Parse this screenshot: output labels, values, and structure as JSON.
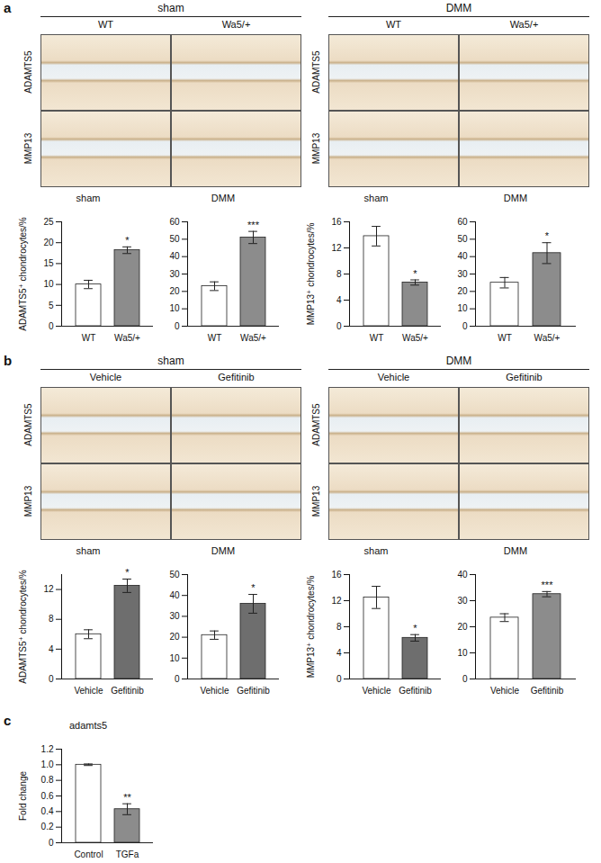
{
  "figure": {
    "panels": [
      {
        "label": "a",
        "rows": [
          "ADAMTS5",
          "MMP13"
        ],
        "groups": [
          {
            "title": "sham",
            "columns": [
              "WT",
              "Wa5/+"
            ]
          },
          {
            "title": "DMM",
            "columns": [
              "WT",
              "Wa5/+"
            ]
          }
        ]
      },
      {
        "label": "b",
        "rows": [
          "ADAMTS5",
          "MMP13"
        ],
        "groups": [
          {
            "title": "sham",
            "columns": [
              "Vehicle",
              "Gefitinib"
            ]
          },
          {
            "title": "DMM",
            "columns": [
              "Vehicle",
              "Gefitinib"
            ]
          }
        ]
      },
      {
        "label": "c"
      }
    ]
  },
  "chart_data": [
    {
      "type": "bar",
      "title": "sham",
      "y_label": "ADAMTS5⁺ chondrocytes/%",
      "categories": [
        "WT",
        "Wa5/+"
      ],
      "values": [
        10,
        18.2
      ],
      "errors": [
        1.0,
        0.8
      ],
      "significance": [
        null,
        "*"
      ],
      "colors": [
        "#ffffff",
        "#8c8c8c"
      ],
      "ylim": [
        0,
        25
      ],
      "yticks": [
        0,
        5,
        10,
        15,
        20,
        25
      ]
    },
    {
      "type": "bar",
      "title": "DMM",
      "categories": [
        "WT",
        "Wa5/+"
      ],
      "values": [
        23,
        51
      ],
      "errors": [
        2.5,
        3.5
      ],
      "significance": [
        null,
        "***"
      ],
      "colors": [
        "#ffffff",
        "#8c8c8c"
      ],
      "ylim": [
        0,
        60
      ],
      "yticks": [
        0,
        10,
        20,
        30,
        40,
        50,
        60
      ]
    },
    {
      "type": "bar",
      "title": "sham",
      "y_label": "MMP13⁺ chondrocytes/%",
      "categories": [
        "WT",
        "Wa5/+"
      ],
      "values": [
        13.8,
        6.7
      ],
      "errors": [
        1.5,
        0.4
      ],
      "significance": [
        null,
        "*"
      ],
      "colors": [
        "#ffffff",
        "#8c8c8c"
      ],
      "ylim": [
        0,
        16
      ],
      "yticks": [
        0,
        4,
        8,
        12,
        16
      ]
    },
    {
      "type": "bar",
      "title": "DMM",
      "categories": [
        "WT",
        "Wa5/+"
      ],
      "values": [
        25,
        42
      ],
      "errors": [
        3,
        6
      ],
      "significance": [
        null,
        "*"
      ],
      "colors": [
        "#ffffff",
        "#8c8c8c"
      ],
      "ylim": [
        0,
        60
      ],
      "yticks": [
        0,
        10,
        20,
        30,
        40,
        50,
        60
      ]
    },
    {
      "type": "bar",
      "title": "sham",
      "y_label": "ADAMTS5⁺ chondrocytes/%",
      "categories": [
        "Vehicle",
        "Gefitinib"
      ],
      "values": [
        6,
        12.5
      ],
      "errors": [
        0.6,
        0.9
      ],
      "significance": [
        null,
        "*"
      ],
      "colors": [
        "#ffffff",
        "#6e6e6e"
      ],
      "ylim": [
        0,
        14
      ],
      "yticks": [
        0,
        4,
        8,
        12
      ]
    },
    {
      "type": "bar",
      "title": "DMM",
      "categories": [
        "Vehicle",
        "Gefitinib"
      ],
      "values": [
        21,
        36
      ],
      "errors": [
        2,
        4.5
      ],
      "significance": [
        null,
        "*"
      ],
      "colors": [
        "#ffffff",
        "#6e6e6e"
      ],
      "ylim": [
        0,
        50
      ],
      "yticks": [
        0,
        10,
        20,
        30,
        40,
        50
      ]
    },
    {
      "type": "bar",
      "title": "sham",
      "y_label": "MMP13⁺ chondrocytes/%",
      "categories": [
        "Vehicle",
        "Gefitinib"
      ],
      "values": [
        12.5,
        6.3
      ],
      "errors": [
        1.7,
        0.5
      ],
      "significance": [
        null,
        "*"
      ],
      "colors": [
        "#ffffff",
        "#6e6e6e"
      ],
      "ylim": [
        0,
        16
      ],
      "yticks": [
        0,
        4,
        8,
        12,
        16
      ]
    },
    {
      "type": "bar",
      "title": "DMM",
      "categories": [
        "Vehicle",
        "Gefitinib"
      ],
      "values": [
        23.5,
        32.5
      ],
      "errors": [
        1.5,
        1
      ],
      "significance": [
        null,
        "***"
      ],
      "colors": [
        "#ffffff",
        "#8c8c8c"
      ],
      "ylim": [
        0,
        40
      ],
      "yticks": [
        0,
        10,
        20,
        30,
        40
      ]
    },
    {
      "type": "bar",
      "title": "adamts5",
      "y_label": "Fold change",
      "categories": [
        "Control",
        "TGFa"
      ],
      "values": [
        1.0,
        0.43
      ],
      "errors": [
        0.01,
        0.07
      ],
      "significance": [
        null,
        "**"
      ],
      "colors": [
        "#ffffff",
        "#8c8c8c"
      ],
      "ylim": [
        0,
        1.2
      ],
      "yticks": [
        0,
        0.2,
        0.4,
        0.6,
        0.8,
        {
          "value": 1,
          "label": "1.0"
        },
        1.2
      ]
    }
  ]
}
